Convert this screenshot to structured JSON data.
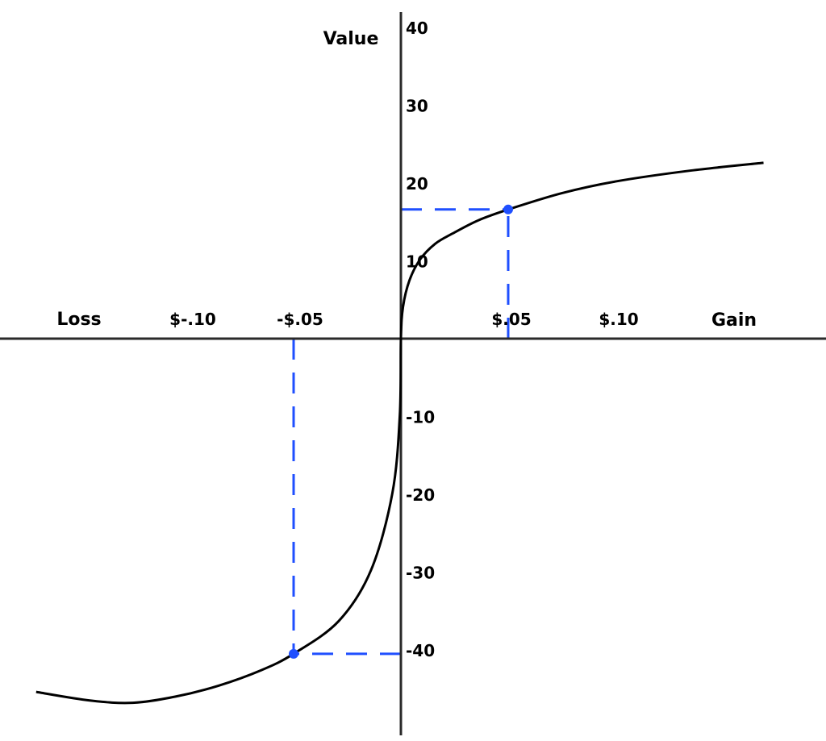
{
  "chart_data": {
    "type": "line",
    "ylabel": "Value",
    "x_left_label": "Loss",
    "x_right_label": "Gain",
    "x_ticks": [
      {
        "value": -0.1,
        "label": "$-.10"
      },
      {
        "value": -0.05,
        "label": "-$.05"
      },
      {
        "value": 0.05,
        "label": "$.05"
      },
      {
        "value": 0.1,
        "label": "$.10"
      }
    ],
    "y_ticks": [
      {
        "value": 40,
        "label": "40"
      },
      {
        "value": 30,
        "label": "30"
      },
      {
        "value": 20,
        "label": "20"
      },
      {
        "value": 10,
        "label": "10"
      },
      {
        "value": -10,
        "label": "-10"
      },
      {
        "value": -20,
        "label": "-20"
      },
      {
        "value": -30,
        "label": "-30"
      },
      {
        "value": -40,
        "label": "-40"
      }
    ],
    "xlim": [
      -0.187,
      0.198
    ],
    "ylim": [
      -51,
      43
    ],
    "grid": false,
    "series": [
      {
        "color": "#000000",
        "points": [
          [
            -0.17,
            -45.4
          ],
          [
            -0.145,
            -46.5
          ],
          [
            -0.125,
            -46.8
          ],
          [
            -0.105,
            -46.0
          ],
          [
            -0.085,
            -44.6
          ],
          [
            -0.065,
            -42.6
          ],
          [
            -0.05,
            -40.5
          ],
          [
            -0.029,
            -36.3
          ],
          [
            -0.014,
            -29.8
          ],
          [
            -0.004,
            -19.9
          ],
          [
            -0.0005,
            -9.8
          ],
          [
            0,
            0
          ],
          [
            0.001,
            4.1
          ],
          [
            0.004,
            7.5
          ],
          [
            0.009,
            10.2
          ],
          [
            0.016,
            12.2
          ],
          [
            0.024,
            13.5
          ],
          [
            0.036,
            15.2
          ],
          [
            0.05,
            16.6
          ],
          [
            0.075,
            18.7
          ],
          [
            0.1,
            20.2
          ],
          [
            0.135,
            21.6
          ],
          [
            0.169,
            22.6
          ]
        ]
      }
    ],
    "highlight_points": [
      {
        "x": 0.05,
        "y": 16.6
      },
      {
        "x": -0.05,
        "y": -40.5
      }
    ],
    "highlight_color": "#1f4fff"
  }
}
